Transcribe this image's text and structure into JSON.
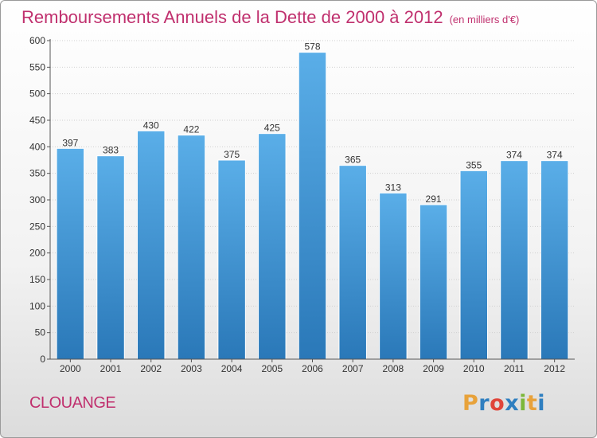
{
  "header": {
    "title": "Remboursements Annuels de la Dette de 2000 à 2012",
    "subtitle": "(en milliers d'€)"
  },
  "footer": {
    "commune": "CLOUANGE",
    "logo": {
      "letters": [
        "P",
        "r",
        "o",
        "x",
        "i",
        "t",
        "i"
      ],
      "colors": [
        "#e8a23a",
        "#2f7fc0",
        "#e0453a",
        "#2f7fc0",
        "#7cb73a",
        "#e8a23a",
        "#2f7fc0"
      ]
    }
  },
  "colors": {
    "bar_top": "#5aaee8",
    "bar_bottom": "#2a78b8",
    "text_accent": "#c0306e"
  },
  "chart_data": {
    "type": "bar",
    "categories": [
      "2000",
      "2001",
      "2002",
      "2003",
      "2004",
      "2005",
      "2006",
      "2007",
      "2008",
      "2009",
      "2010",
      "2011",
      "2012"
    ],
    "values": [
      397,
      383,
      430,
      422,
      375,
      425,
      578,
      365,
      313,
      291,
      355,
      374,
      374
    ],
    "ylim": [
      0,
      600
    ],
    "yticks": [
      0,
      50,
      100,
      150,
      200,
      250,
      300,
      350,
      400,
      450,
      500,
      550,
      600
    ],
    "grid": true,
    "data_labels": true
  }
}
